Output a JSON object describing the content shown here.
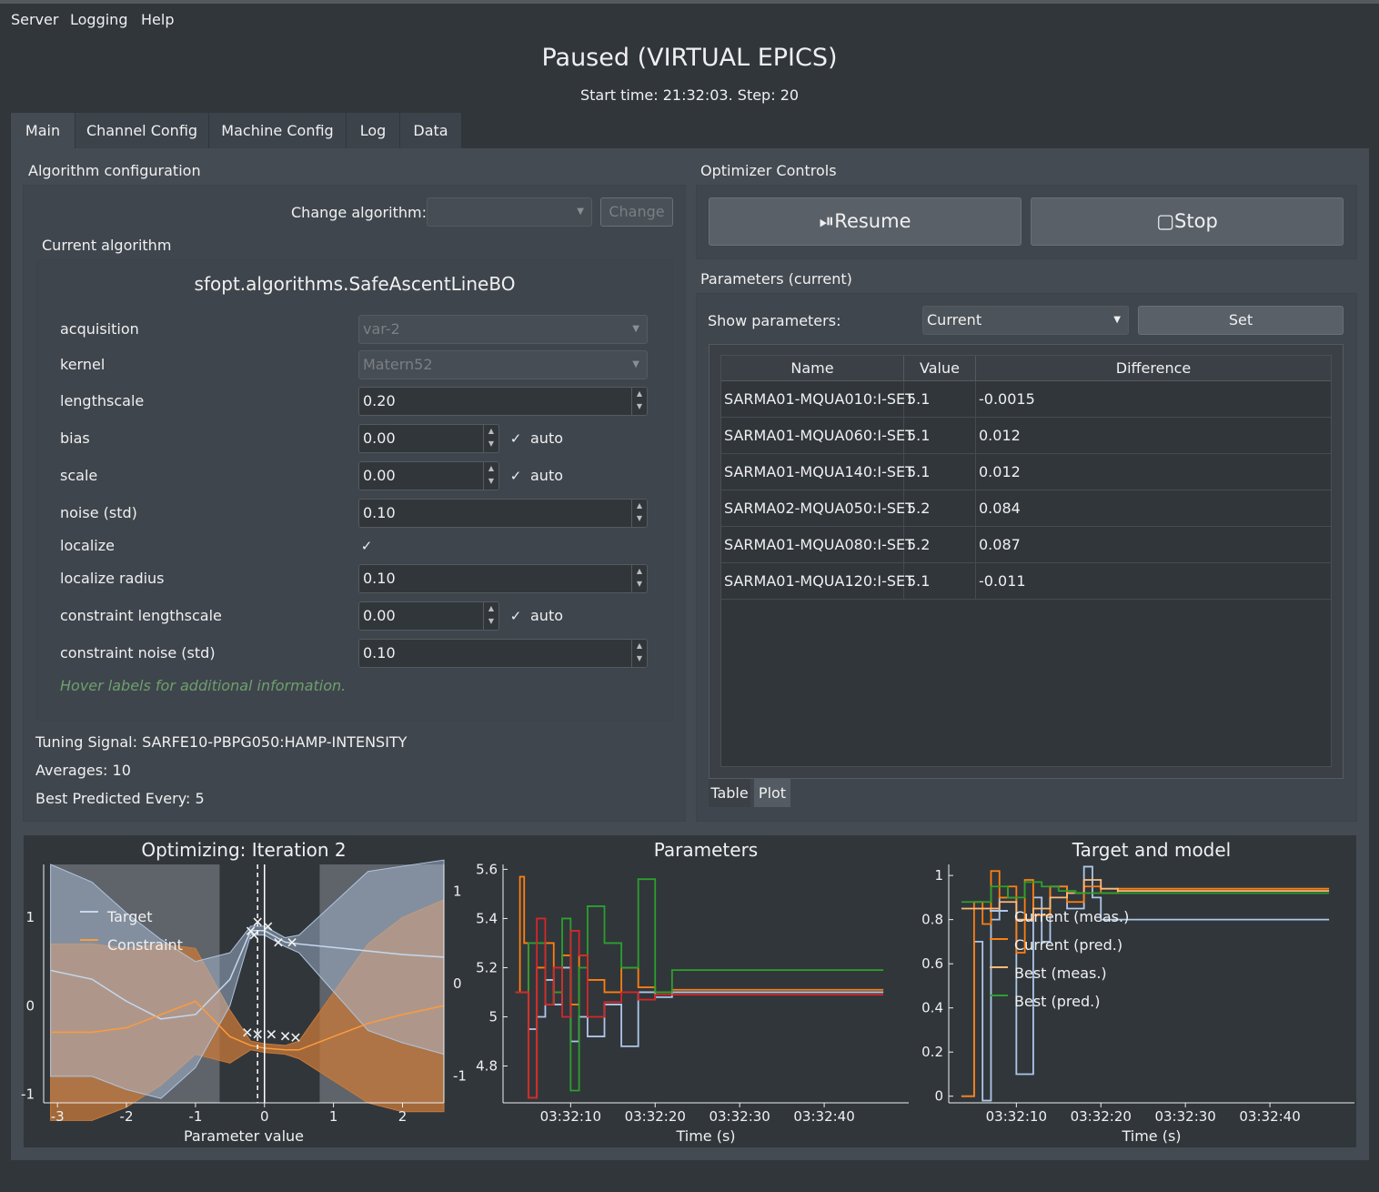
{
  "menu": {
    "server": "Server",
    "logging": "Logging",
    "help": "Help"
  },
  "header": {
    "title": "Paused (VIRTUAL EPICS)",
    "subtitle": "Start time: 21:32:03. Step: 20"
  },
  "tabs": [
    "Main",
    "Channel Config",
    "Machine Config",
    "Log",
    "Data"
  ],
  "algo": {
    "group_title": "Algorithm configuration",
    "change_label": "Change algorithm:",
    "change_button": "Change",
    "current_title": "Current algorithm",
    "name": "sfopt.algorithms.SafeAscentLineBO",
    "acquisition_label": "acquisition",
    "acquisition": "var-2",
    "kernel_label": "kernel",
    "kernel": "Matern52",
    "lengthscale_label": "lengthscale",
    "lengthscale": "0.20",
    "bias_label": "bias",
    "bias": "0.00",
    "scale_label": "scale",
    "scale": "0.00",
    "noise_label": "noise (std)",
    "noise": "0.10",
    "localize_label": "localize",
    "radius_label": "localize radius",
    "radius": "0.10",
    "clength_label": "constraint lengthscale",
    "clength": "0.00",
    "cnoise_label": "constraint noise (std)",
    "cnoise": "0.10",
    "auto": "auto",
    "hint": "Hover labels for additional information.",
    "tuning": "Tuning Signal: SARFE10-PBPG050:HAMP-INTENSITY",
    "averages": "Averages: 10",
    "best": "Best Predicted Every: 5"
  },
  "controls": {
    "title": "Optimizer Controls",
    "resume": "Resume",
    "stop": "Stop"
  },
  "params": {
    "title": "Parameters (current)",
    "show_label": "Show parameters:",
    "show_value": "Current",
    "set": "Set",
    "columns": [
      "Name",
      "Value",
      "Difference"
    ],
    "rows": [
      [
        "SARMA01-MQUA010:I-SET",
        "5.1",
        "-0.0015"
      ],
      [
        "SARMA01-MQUA060:I-SET",
        "5.1",
        "0.012"
      ],
      [
        "SARMA01-MQUA140:I-SET",
        "5.1",
        "0.012"
      ],
      [
        "SARMA02-MQUA050:I-SET",
        "5.2",
        "0.084"
      ],
      [
        "SARMA01-MQUA080:I-SET",
        "5.2",
        "0.087"
      ],
      [
        "SARMA01-MQUA120:I-SET",
        "5.1",
        "-0.011"
      ]
    ],
    "tab_table": "Table",
    "tab_plot": "Plot"
  },
  "chart_data": [
    {
      "type": "area",
      "title": "Optimizing: Iteration 2",
      "xlabel": "Parameter value",
      "xlim": [
        -3.2,
        2.6
      ],
      "x_ticks": [
        "-3",
        "-2",
        "-1",
        "0",
        "1",
        "2"
      ],
      "y_ticks_left": [
        "1",
        "0",
        "-1"
      ],
      "y_ticks_right": [
        "1",
        "0",
        "-1"
      ],
      "legend": [
        "Target",
        "Constraint"
      ],
      "legend_position": "top-left",
      "series": [
        {
          "name": "Target",
          "x": [
            -3.1,
            -2.5,
            -2,
            -1.5,
            -1,
            -0.5,
            -0.2,
            0,
            0.3,
            0.5,
            1,
            1.5,
            2,
            2.6
          ],
          "y": [
            0.4,
            0.3,
            0.05,
            -0.15,
            -0.1,
            0.3,
            0.85,
            0.85,
            0.72,
            0.7,
            0.66,
            0.62,
            0.58,
            0.55
          ]
        },
        {
          "name": "Constraint",
          "x": [
            -3.1,
            -2.5,
            -2,
            -1.5,
            -1,
            -0.5,
            -0.2,
            0,
            0.3,
            0.5,
            1,
            1.5,
            2,
            2.6
          ],
          "y": [
            -0.3,
            -0.3,
            -0.25,
            -0.1,
            0.05,
            -0.35,
            -0.45,
            -0.48,
            -0.5,
            -0.5,
            -0.35,
            -0.2,
            -0.1,
            0.0
          ]
        }
      ]
    },
    {
      "type": "line",
      "title": "Parameters",
      "xlabel": "Time (s)",
      "x_ticks": [
        "03:32:10",
        "03:32:20",
        "03:32:30",
        "03:32:40"
      ],
      "y_ticks": [
        "5.6",
        "5.4",
        "5.2",
        "5",
        "4.8"
      ],
      "ylim": [
        4.65,
        5.62
      ],
      "series": [
        {
          "color": "#aec7e8",
          "x": [
            1.5,
            2,
            3,
            4,
            5,
            6,
            7,
            8,
            9,
            10,
            12,
            14,
            16,
            18,
            20,
            45
          ],
          "y": [
            5.1,
            5.1,
            4.95,
            5.0,
            5.15,
            5.05,
            5.2,
            4.9,
            5.0,
            4.92,
            5.05,
            4.88,
            5.1,
            5.08,
            5.1,
            5.1
          ]
        },
        {
          "color": "#ff7f0e",
          "x": [
            1.5,
            2,
            2.5,
            3,
            4,
            5,
            6,
            7,
            8,
            9,
            10,
            12,
            14,
            16,
            18,
            20,
            45
          ],
          "y": [
            5.1,
            5.57,
            5.3,
            4.67,
            5.2,
            5.3,
            5.1,
            5.25,
            5.05,
            5.25,
            5.15,
            5.1,
            5.2,
            5.12,
            5.1,
            5.11,
            5.11
          ]
        },
        {
          "color": "#2ca02c",
          "x": [
            1.5,
            3,
            5,
            6,
            7,
            8,
            9,
            10,
            12,
            14,
            16,
            18,
            20,
            45
          ],
          "y": [
            5.1,
            5.3,
            5.05,
            5.1,
            5.4,
            4.7,
            5.2,
            5.45,
            5.3,
            5.2,
            5.56,
            5.1,
            5.19,
            5.19
          ]
        },
        {
          "color": "#d62728",
          "x": [
            1.5,
            3,
            4,
            5,
            6,
            7,
            8,
            9,
            10,
            12,
            14,
            16,
            18,
            20,
            45
          ],
          "y": [
            5.1,
            4.67,
            5.4,
            5.05,
            5.2,
            5.0,
            5.35,
            5.25,
            5.0,
            5.06,
            5.1,
            5.07,
            5.09,
            5.09,
            5.09
          ]
        }
      ]
    },
    {
      "type": "line",
      "title": "Target and model",
      "xlabel": "Time (s)",
      "x_ticks": [
        "03:32:10",
        "03:32:20",
        "03:32:30",
        "03:32:40"
      ],
      "y_ticks": [
        "1",
        "0.8",
        "0.6",
        "0.4",
        "0.2",
        "0"
      ],
      "ylim": [
        -0.03,
        1.05
      ],
      "legend": [
        "Current (meas.)",
        "Current (pred.)",
        "Best (meas.)",
        "Best (pred.)"
      ],
      "series": [
        {
          "name": "Current (meas.)",
          "color": "#aec7e8",
          "x": [
            1.5,
            3,
            4,
            5,
            6,
            8,
            10,
            11,
            12,
            14,
            16,
            17,
            18,
            20,
            45
          ],
          "y": [
            0.0,
            0.7,
            -0.02,
            0.8,
            0.9,
            0.1,
            0.9,
            0.7,
            0.95,
            0.85,
            1.04,
            0.9,
            0.8,
            0.8,
            0.8
          ]
        },
        {
          "name": "Current (pred.)",
          "color": "#ff7f0e",
          "x": [
            1.5,
            3,
            4,
            5,
            6,
            7,
            8,
            9,
            10,
            12,
            14,
            16,
            18,
            20,
            45
          ],
          "y": [
            0.0,
            0.88,
            0.78,
            1.02,
            0.9,
            0.95,
            0.65,
            0.98,
            0.82,
            0.95,
            0.88,
            0.95,
            0.92,
            0.94,
            0.94
          ]
        },
        {
          "name": "Best (meas.)",
          "color": "#ffbb78",
          "x": [
            1.5,
            4,
            6,
            8,
            10,
            12,
            14,
            16,
            18,
            20,
            45
          ],
          "y": [
            0.85,
            0.85,
            0.88,
            0.8,
            0.85,
            0.9,
            0.92,
            0.98,
            0.94,
            0.93,
            0.93
          ]
        },
        {
          "name": "Best (pred.)",
          "color": "#2ca02c",
          "x": [
            1.5,
            3,
            5,
            7,
            9,
            11,
            13,
            15,
            17,
            20,
            45
          ],
          "y": [
            0.88,
            0.88,
            0.95,
            0.9,
            0.97,
            0.95,
            0.93,
            0.92,
            0.92,
            0.92,
            0.92
          ]
        }
      ]
    }
  ]
}
